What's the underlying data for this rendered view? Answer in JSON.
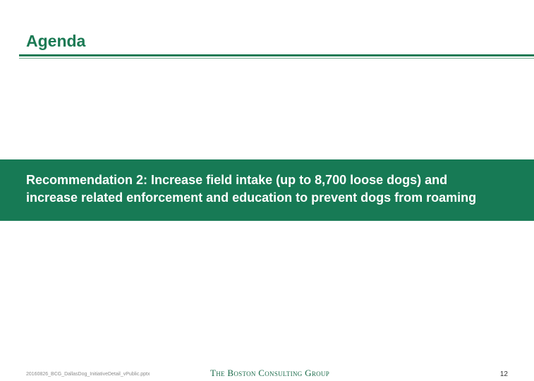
{
  "slide": {
    "title": "Agenda",
    "banner_line1": "Recommendation 2: Increase field intake (up to 8,700 loose dogs) and",
    "banner_line2": "increase related enforcement and education to prevent dogs from roaming"
  },
  "footer": {
    "file_name": "20160826_BCG_DallasDog_InitiativeDetail_vPublic.pptx",
    "logo_text": "The Boston Consulting Group",
    "page_number": "12"
  },
  "colors": {
    "accent": "#1b7a54",
    "banner_bg": "#177a55",
    "banner_text": "#ffffff"
  }
}
